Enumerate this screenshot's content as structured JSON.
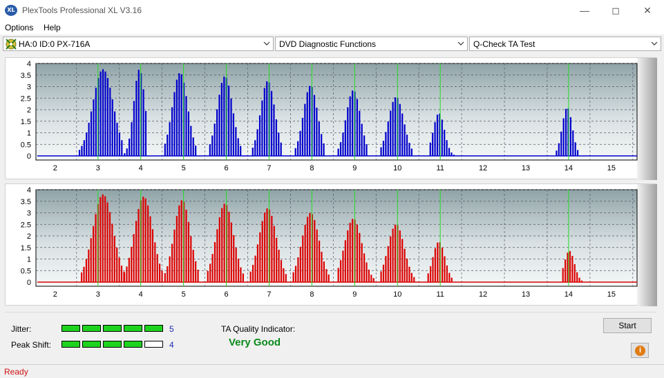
{
  "window": {
    "title": "PlexTools Professional XL V3.16",
    "logo_text": "XL"
  },
  "menu": [
    "Options",
    "Help"
  ],
  "toolbar": {
    "drive": "HA:0 ID:0  PX-716A",
    "function": "DVD Diagnostic Functions",
    "test": "Q-Check TA Test"
  },
  "colors": {
    "top_bars": "#0000cc",
    "bottom_bars": "#dd0000",
    "reference_lines": "#22dd22"
  },
  "chart_data": [
    {
      "type": "bar",
      "ylim": [
        0,
        4
      ],
      "y_ticks": [
        "0",
        "0.5",
        "1",
        "1.5",
        "2",
        "2.5",
        "3",
        "3.5",
        "4"
      ],
      "x_ticks": [
        "2",
        "3",
        "4",
        "5",
        "6",
        "7",
        "8",
        "9",
        "10",
        "11",
        "12",
        "13",
        "14",
        "15"
      ],
      "xlim": [
        1.55,
        15.6
      ],
      "reference_lines": [
        3,
        4,
        5,
        6,
        7,
        8,
        9,
        10,
        11,
        14
      ],
      "peaks": [
        {
          "center": 3.1,
          "height": 3.75,
          "low": 2.55,
          "high": 3.55
        },
        {
          "center": 3.95,
          "height": 3.75,
          "low": 3.55,
          "high": 4.1
        },
        {
          "center": 4.9,
          "height": 3.6,
          "low": 4.55,
          "high": 5.3
        },
        {
          "center": 5.95,
          "height": 3.45,
          "low": 5.6,
          "high": 6.35
        },
        {
          "center": 6.95,
          "height": 3.25,
          "low": 6.6,
          "high": 7.3
        },
        {
          "center": 7.95,
          "height": 3.05,
          "low": 7.6,
          "high": 8.3
        },
        {
          "center": 8.95,
          "height": 2.85,
          "low": 8.6,
          "high": 9.3
        },
        {
          "center": 9.95,
          "height": 2.55,
          "low": 9.6,
          "high": 10.35
        },
        {
          "center": 10.95,
          "height": 1.85,
          "low": 10.75,
          "high": 11.3
        },
        {
          "center": 13.95,
          "height": 2.1,
          "low": 13.7,
          "high": 14.2
        }
      ]
    },
    {
      "type": "bar",
      "ylim": [
        0,
        4
      ],
      "y_ticks": [
        "0",
        "0.5",
        "1",
        "1.5",
        "2",
        "2.5",
        "3",
        "3.5",
        "4"
      ],
      "x_ticks": [
        "2",
        "3",
        "4",
        "5",
        "6",
        "7",
        "8",
        "9",
        "10",
        "11",
        "12",
        "13",
        "14",
        "15"
      ],
      "xlim": [
        1.55,
        15.6
      ],
      "reference_lines": [
        3,
        4,
        5,
        6,
        7,
        8,
        9,
        10,
        11,
        14
      ],
      "peaks": [
        {
          "center": 3.1,
          "height": 3.8,
          "low": 2.6,
          "high": 3.6
        },
        {
          "center": 4.05,
          "height": 3.7,
          "low": 3.6,
          "high": 4.5
        },
        {
          "center": 4.95,
          "height": 3.55,
          "low": 4.55,
          "high": 5.35
        },
        {
          "center": 5.95,
          "height": 3.4,
          "low": 5.55,
          "high": 6.4
        },
        {
          "center": 6.95,
          "height": 3.2,
          "low": 6.55,
          "high": 7.4
        },
        {
          "center": 7.95,
          "height": 3.0,
          "low": 7.55,
          "high": 8.4
        },
        {
          "center": 8.95,
          "height": 2.75,
          "low": 8.6,
          "high": 9.45
        },
        {
          "center": 9.95,
          "height": 2.5,
          "low": 9.6,
          "high": 10.4
        },
        {
          "center": 10.95,
          "height": 1.75,
          "low": 10.7,
          "high": 11.3
        },
        {
          "center": 14.0,
          "height": 1.35,
          "low": 13.85,
          "high": 14.35
        }
      ]
    }
  ],
  "metrics": {
    "jitter": {
      "label": "Jitter:",
      "value": "5",
      "level": 5,
      "max": 5
    },
    "peak_shift": {
      "label": "Peak Shift:",
      "value": "4",
      "level": 4,
      "max": 5
    }
  },
  "quality": {
    "label": "TA Quality Indicator:",
    "value": "Very Good"
  },
  "buttons": {
    "start": "Start"
  },
  "status": "Ready"
}
